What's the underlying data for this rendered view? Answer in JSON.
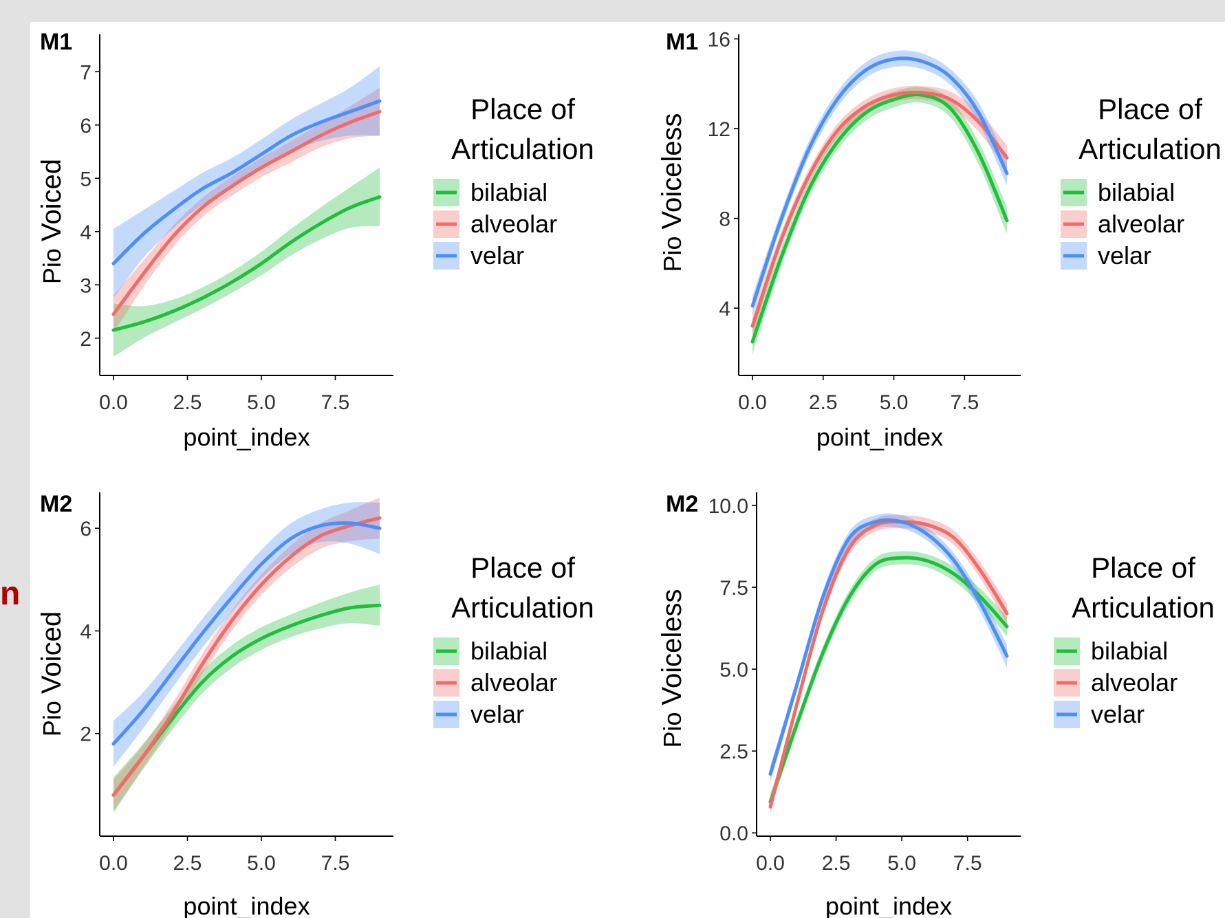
{
  "side_label": "n",
  "colors": {
    "page_background": "#e2e2e2",
    "panel_background": "#ffffff",
    "bilabial": "#1fbf3b",
    "alveolar": "#f26b6b",
    "velar": "#4d8ff7",
    "side_label": "#b00000"
  },
  "legend": {
    "title_line1": "Place of",
    "title_line2": "Articulation",
    "entries": [
      "bilabial",
      "alveolar",
      "velar"
    ]
  },
  "chart_data": [
    {
      "type": "line",
      "panel_tag": "M1",
      "xlabel": "point_index",
      "ylabel_prefix": "Pio",
      "ylabel_main": "Voiced",
      "xlim": [
        -0.5,
        9.5
      ],
      "ylim": [
        1.3,
        7.7
      ],
      "xticks": [
        0,
        2.5,
        5,
        7.5
      ],
      "xtick_labels": [
        "0.0",
        "2.5",
        "5.0",
        "7.5"
      ],
      "yticks": [
        2,
        3,
        4,
        5,
        6,
        7
      ],
      "ytick_labels": [
        "2",
        "3",
        "4",
        "5",
        "6",
        "7"
      ],
      "x": [
        0,
        1,
        2,
        3,
        4,
        5,
        6,
        7,
        8,
        9
      ],
      "series": [
        {
          "name": "bilabial",
          "values": [
            2.15,
            2.3,
            2.5,
            2.75,
            3.05,
            3.4,
            3.8,
            4.15,
            4.45,
            4.65
          ],
          "band": [
            0.5,
            0.3,
            0.22,
            0.2,
            0.2,
            0.22,
            0.25,
            0.3,
            0.38,
            0.55
          ]
        },
        {
          "name": "alveolar",
          "values": [
            2.45,
            3.2,
            3.9,
            4.45,
            4.85,
            5.2,
            5.5,
            5.8,
            6.05,
            6.25
          ],
          "band": [
            0.35,
            0.25,
            0.2,
            0.18,
            0.18,
            0.18,
            0.2,
            0.22,
            0.3,
            0.45
          ]
        },
        {
          "name": "velar",
          "values": [
            3.4,
            3.95,
            4.4,
            4.8,
            5.1,
            5.45,
            5.8,
            6.05,
            6.25,
            6.45
          ],
          "band": [
            0.65,
            0.45,
            0.35,
            0.3,
            0.28,
            0.28,
            0.3,
            0.35,
            0.45,
            0.65
          ]
        }
      ]
    },
    {
      "type": "line",
      "panel_tag": "M1",
      "xlabel": "point_index",
      "ylabel_prefix": "Pio",
      "ylabel_main": "Voiceless",
      "xlim": [
        -0.5,
        9.5
      ],
      "ylim": [
        1,
        16.2
      ],
      "xticks": [
        0,
        2.5,
        5,
        7.5
      ],
      "xtick_labels": [
        "0.0",
        "2.5",
        "5.0",
        "7.5"
      ],
      "yticks": [
        4,
        8,
        12,
        16
      ],
      "ytick_labels": [
        "4",
        "8",
        "12",
        "16"
      ],
      "x": [
        0,
        1,
        2,
        3,
        4,
        5,
        6,
        7,
        8,
        9
      ],
      "series": [
        {
          "name": "bilabial",
          "values": [
            2.5,
            6.2,
            9.3,
            11.4,
            12.7,
            13.3,
            13.5,
            12.9,
            10.9,
            7.9
          ],
          "band": [
            0.55,
            0.4,
            0.35,
            0.35,
            0.35,
            0.35,
            0.35,
            0.4,
            0.5,
            0.6
          ]
        },
        {
          "name": "alveolar",
          "values": [
            3.2,
            7.0,
            9.9,
            11.9,
            13.0,
            13.5,
            13.6,
            13.3,
            12.3,
            10.7
          ],
          "band": [
            0.45,
            0.35,
            0.3,
            0.3,
            0.3,
            0.3,
            0.3,
            0.35,
            0.45,
            0.55
          ]
        },
        {
          "name": "velar",
          "values": [
            4.1,
            7.9,
            11.1,
            13.3,
            14.6,
            15.1,
            15.0,
            14.3,
            12.7,
            10.0
          ],
          "band": [
            0.45,
            0.35,
            0.35,
            0.35,
            0.35,
            0.35,
            0.35,
            0.35,
            0.45,
            0.55
          ]
        }
      ]
    },
    {
      "type": "line",
      "panel_tag": "M2",
      "xlabel": "point_index",
      "ylabel_prefix": "Pio",
      "ylabel_main": "Voiced",
      "xlim": [
        -0.5,
        9.5
      ],
      "ylim": [
        0.0,
        6.7
      ],
      "xticks": [
        0,
        2.5,
        5,
        7.5
      ],
      "xtick_labels": [
        "0.0",
        "2.5",
        "5.0",
        "7.5"
      ],
      "yticks": [
        2,
        4,
        6
      ],
      "ytick_labels": [
        "2",
        "4",
        "6"
      ],
      "x": [
        0,
        1,
        2,
        3,
        4,
        5,
        6,
        7,
        8,
        9
      ],
      "series": [
        {
          "name": "bilabial",
          "values": [
            0.8,
            1.55,
            2.3,
            3.0,
            3.5,
            3.85,
            4.1,
            4.3,
            4.45,
            4.5
          ],
          "band": [
            0.35,
            0.25,
            0.22,
            0.22,
            0.22,
            0.22,
            0.22,
            0.25,
            0.3,
            0.4
          ]
        },
        {
          "name": "alveolar",
          "values": [
            0.8,
            1.55,
            2.4,
            3.35,
            4.2,
            4.9,
            5.45,
            5.85,
            6.05,
            6.2
          ],
          "band": [
            0.3,
            0.22,
            0.2,
            0.2,
            0.2,
            0.2,
            0.22,
            0.25,
            0.3,
            0.4
          ]
        },
        {
          "name": "velar",
          "values": [
            1.8,
            2.45,
            3.2,
            3.95,
            4.65,
            5.3,
            5.8,
            6.05,
            6.1,
            6.0
          ],
          "band": [
            0.45,
            0.35,
            0.3,
            0.28,
            0.28,
            0.28,
            0.3,
            0.32,
            0.4,
            0.5
          ]
        }
      ]
    },
    {
      "type": "line",
      "panel_tag": "M2",
      "xlabel": "point_index",
      "ylabel_prefix": "Pio",
      "ylabel_main": "Voiceless",
      "xlim": [
        -0.5,
        9.5
      ],
      "ylim": [
        -0.1,
        10.4
      ],
      "xticks": [
        0,
        2.5,
        5,
        7.5
      ],
      "xtick_labels": [
        "0.0",
        "2.5",
        "5.0",
        "7.5"
      ],
      "yticks": [
        0,
        2.5,
        5,
        7.5,
        10
      ],
      "ytick_labels": [
        "0.0",
        "2.5",
        "5.0",
        "7.5",
        "10.0"
      ],
      "x": [
        0,
        1,
        2,
        3,
        4,
        5,
        6,
        7,
        8,
        9
      ],
      "series": [
        {
          "name": "bilabial",
          "values": [
            0.95,
            3.3,
            5.5,
            7.2,
            8.2,
            8.4,
            8.3,
            7.9,
            7.2,
            6.3
          ],
          "band": [
            0.25,
            0.2,
            0.2,
            0.2,
            0.2,
            0.2,
            0.2,
            0.22,
            0.25,
            0.3
          ]
        },
        {
          "name": "alveolar",
          "values": [
            0.8,
            3.9,
            6.8,
            8.7,
            9.4,
            9.5,
            9.4,
            9.0,
            8.0,
            6.7
          ],
          "band": [
            0.25,
            0.2,
            0.2,
            0.2,
            0.2,
            0.2,
            0.2,
            0.22,
            0.25,
            0.3
          ]
        },
        {
          "name": "velar",
          "values": [
            1.8,
            4.5,
            7.2,
            9.0,
            9.5,
            9.5,
            9.1,
            8.3,
            7.0,
            5.4
          ],
          "band": [
            0.25,
            0.2,
            0.2,
            0.2,
            0.2,
            0.2,
            0.2,
            0.22,
            0.28,
            0.35
          ]
        }
      ]
    }
  ]
}
